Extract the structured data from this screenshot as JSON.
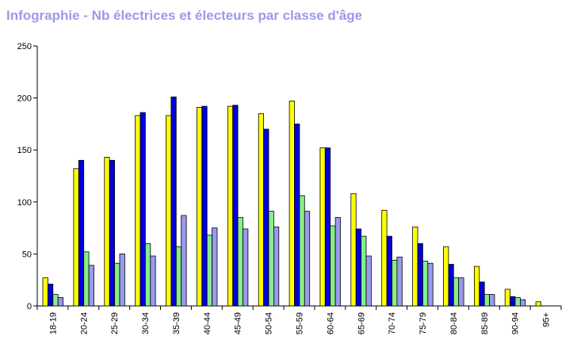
{
  "title": "Infographie - Nb électrices et électeurs par classe d'âge",
  "chart_data": {
    "type": "bar",
    "title": "Infographie - Nb électrices et électeurs par classe d'âge",
    "xlabel": "",
    "ylabel": "",
    "ylim": [
      0,
      250
    ],
    "yticks": [
      0,
      50,
      100,
      150,
      200,
      250
    ],
    "grid": false,
    "legend": "none",
    "categories": [
      "18-19",
      "20-24",
      "25-29",
      "30-34",
      "35-39",
      "40-44",
      "45-49",
      "50-54",
      "55-59",
      "60-64",
      "65-69",
      "70-74",
      "75-79",
      "80-84",
      "85-89",
      "90-94",
      "95+"
    ],
    "series": [
      {
        "color": "#ffff00",
        "values": [
          27,
          132,
          143,
          183,
          183,
          191,
          192,
          185,
          197,
          152,
          108,
          92,
          76,
          57,
          38,
          16,
          4
        ]
      },
      {
        "color": "#0000dd",
        "values": [
          21,
          140,
          140,
          186,
          201,
          192,
          193,
          170,
          175,
          152,
          74,
          67,
          60,
          40,
          23,
          9,
          0
        ]
      },
      {
        "color": "#88ee88",
        "values": [
          11,
          52,
          41,
          60,
          57,
          68,
          85,
          91,
          106,
          77,
          67,
          44,
          43,
          27,
          11,
          8,
          0
        ]
      },
      {
        "color": "#9999ee",
        "values": [
          8,
          39,
          50,
          48,
          87,
          75,
          74,
          76,
          91,
          85,
          48,
          47,
          41,
          27,
          11,
          6,
          0
        ]
      }
    ]
  }
}
